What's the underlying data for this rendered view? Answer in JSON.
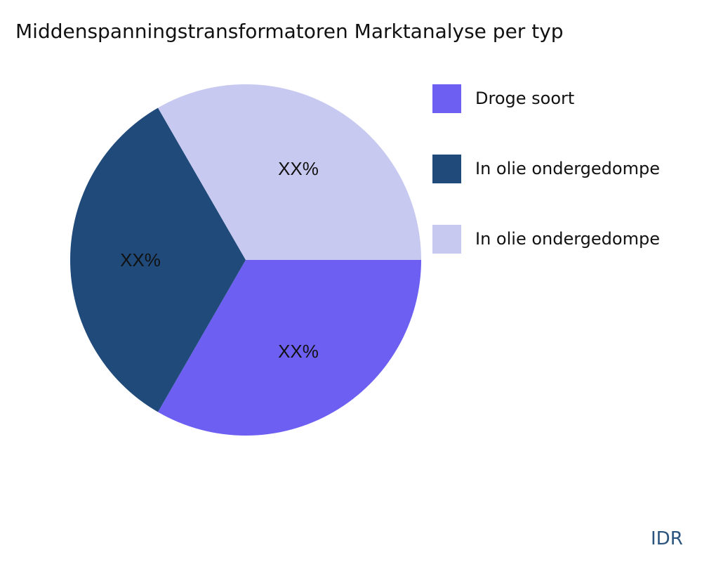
{
  "chart_data": {
    "type": "pie",
    "title": "Middenspanningstransformatoren Marktanalyse per typ",
    "categories": [
      "Droge soort",
      "In olie ondergedompe",
      "In olie ondergedompe"
    ],
    "values": [
      33.33,
      33.33,
      33.33
    ],
    "data_labels": [
      "XX%",
      "XX%",
      "XX%"
    ],
    "colors": [
      "#6c5ff2",
      "#1f4a7a",
      "#c8c9f0"
    ],
    "legend_position": "right"
  },
  "watermark": "IDR"
}
